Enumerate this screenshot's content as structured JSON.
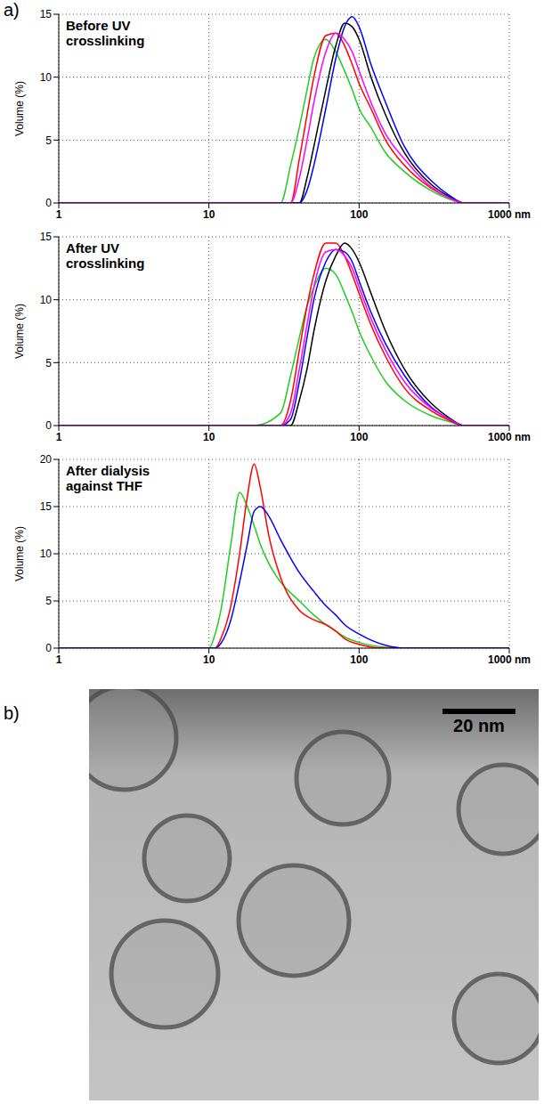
{
  "panel_labels": [
    "a)",
    "b)"
  ],
  "image": {
    "scale_bar": "20 nm"
  },
  "chart_data": [
    {
      "type": "line",
      "title": "Before UV crosslinking",
      "ylabel": "Volume (%)",
      "log": "x",
      "grid": true,
      "xlim": [
        1,
        1000
      ],
      "xticks": [
        1,
        10,
        100,
        {
          "value": 1000,
          "label": "1000 nm"
        }
      ],
      "ylim": [
        0,
        15
      ],
      "yticks": [
        0,
        5,
        10,
        15
      ],
      "x": [
        1,
        2,
        5,
        10,
        20,
        30,
        35,
        40,
        45,
        50,
        60,
        70,
        80,
        90,
        100,
        120,
        150,
        200,
        300,
        400,
        500,
        1000
      ],
      "series": [
        {
          "color": "#22cc22",
          "values": [
            0,
            0,
            0,
            0,
            0,
            0,
            3,
            6,
            9,
            11.5,
            13,
            12,
            10.5,
            9,
            7.5,
            6,
            4,
            2.5,
            1,
            0.3,
            0,
            0
          ]
        },
        {
          "color": "#ff0000",
          "values": [
            0,
            0,
            0,
            0,
            0,
            0,
            0,
            3.5,
            7,
            10,
            13.3,
            13.5,
            12.5,
            11,
            9.5,
            7.5,
            5,
            3,
            1.2,
            0.4,
            0,
            0
          ]
        },
        {
          "color": "#000000",
          "values": [
            0,
            0,
            0,
            0,
            0,
            0,
            0,
            0,
            2,
            4.5,
            9,
            12.5,
            14.3,
            14,
            13,
            10,
            7,
            4,
            1.5,
            0.5,
            0,
            0
          ]
        },
        {
          "color": "#0000ff",
          "values": [
            0,
            0,
            0,
            0,
            0,
            0,
            0,
            0,
            1,
            3,
            7.5,
            11.5,
            14,
            14.8,
            14,
            11,
            8,
            4.5,
            1.8,
            0.6,
            0,
            0
          ]
        },
        {
          "color": "#ff00ff",
          "values": [
            0,
            0,
            0,
            0,
            0,
            0,
            0,
            2,
            5,
            8,
            12,
            13.5,
            13,
            12,
            10.5,
            8,
            5.5,
            3.5,
            1.3,
            0.4,
            0,
            0
          ]
        }
      ]
    },
    {
      "type": "line",
      "title": "After UV crosslinking",
      "ylabel": "Volume (%)",
      "log": "x",
      "grid": true,
      "xlim": [
        1,
        1000
      ],
      "xticks": [
        1,
        10,
        100,
        {
          "value": 1000,
          "label": "1000 nm"
        }
      ],
      "ylim": [
        0,
        15
      ],
      "yticks": [
        0,
        5,
        10,
        15
      ],
      "x": [
        1,
        2,
        5,
        10,
        20,
        30,
        35,
        40,
        45,
        50,
        60,
        70,
        80,
        90,
        100,
        120,
        150,
        200,
        300,
        400,
        500,
        1000
      ],
      "series": [
        {
          "color": "#22cc22",
          "values": [
            0,
            0,
            0,
            0,
            0,
            1,
            4,
            7,
            9.5,
            11,
            12.5,
            12,
            10.5,
            9,
            7.5,
            5.5,
            3.5,
            2,
            0.8,
            0.3,
            0,
            0
          ]
        },
        {
          "color": "#ff0000",
          "values": [
            0,
            0,
            0,
            0,
            0,
            0,
            2,
            6,
            9.5,
            12,
            14.5,
            14.5,
            13.5,
            12,
            10.5,
            8,
            5.5,
            3,
            1.2,
            0.4,
            0,
            0
          ]
        },
        {
          "color": "#0000ff",
          "values": [
            0,
            0,
            0,
            0,
            0,
            0,
            0.5,
            3.5,
            7,
            10,
            13,
            14,
            13.8,
            13,
            11.5,
            9,
            6.5,
            4,
            1.5,
            0.5,
            0,
            0
          ]
        },
        {
          "color": "#000000",
          "values": [
            0,
            0,
            0,
            0,
            0,
            0,
            0,
            2,
            4.5,
            7.5,
            11.5,
            13.5,
            14.5,
            14,
            13,
            10.5,
            7.5,
            4.5,
            1.8,
            0.6,
            0,
            0
          ]
        },
        {
          "color": "#ff00ff",
          "values": [
            0,
            0,
            0,
            0,
            0,
            0,
            1,
            4.5,
            8,
            11,
            13.8,
            14,
            13.5,
            12.5,
            11,
            8.5,
            6,
            3.5,
            1.4,
            0.5,
            0,
            0
          ]
        }
      ]
    },
    {
      "type": "line",
      "title": "After dialysis against THF",
      "ylabel": "Volume (%)",
      "log": "x",
      "grid": true,
      "xlim": [
        1,
        1000
      ],
      "xticks": [
        1,
        10,
        100,
        {
          "value": 1000,
          "label": "1000 nm"
        }
      ],
      "ylim": [
        0,
        20
      ],
      "yticks": [
        0,
        5,
        10,
        15,
        20
      ],
      "x": [
        1,
        2,
        5,
        10,
        11,
        12,
        14,
        16,
        18,
        20,
        22,
        25,
        30,
        40,
        50,
        60,
        70,
        80,
        100,
        150,
        200,
        1000
      ],
      "series": [
        {
          "color": "#22cc22",
          "values": [
            0,
            0,
            0,
            0,
            1.5,
            4,
            11,
            16.5,
            15,
            13,
            11,
            9,
            7,
            5,
            3.5,
            2.5,
            1.8,
            1.2,
            0.6,
            0.1,
            0,
            0
          ]
        },
        {
          "color": "#ff0000",
          "values": [
            0,
            0,
            0,
            0,
            0,
            1,
            4.5,
            10,
            16,
            19.5,
            17,
            12,
            7.5,
            4,
            3,
            2.5,
            1.8,
            1,
            0.4,
            0,
            0,
            0
          ]
        },
        {
          "color": "#0000ff",
          "values": [
            0,
            0,
            0,
            0,
            0,
            0.5,
            3,
            7,
            11,
            14.5,
            15,
            14,
            11.5,
            8,
            6,
            4.5,
            3.5,
            2.5,
            1.5,
            0.3,
            0,
            0
          ]
        }
      ]
    }
  ]
}
